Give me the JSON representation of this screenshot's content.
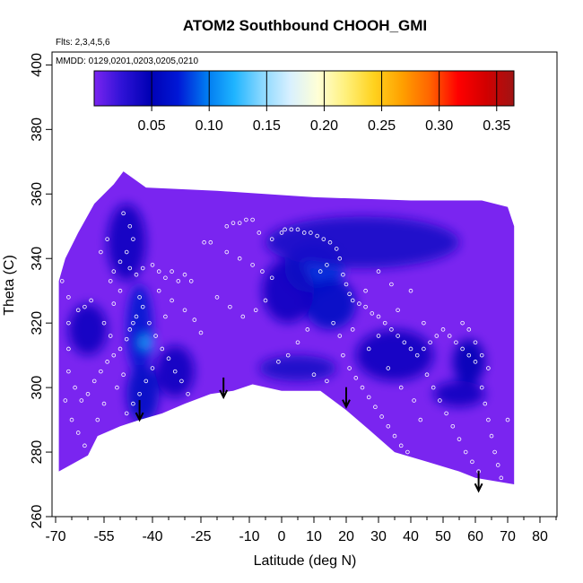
{
  "chart_data": {
    "type": "scatter",
    "title": "ATOM2 Southbound CHOOH_GMI",
    "flights_note": "Flts: 2,3,4,5,6",
    "dates_note": "MMDD: 0129,0201,0203,0205,0210",
    "xlabel": "Latitude (deg N)",
    "ylabel": "Theta (C)",
    "xlim": [
      -70,
      85
    ],
    "ylim": [
      260,
      404
    ],
    "x_ticks": [
      -70,
      -55,
      -40,
      -25,
      -10,
      0,
      10,
      20,
      30,
      40,
      50,
      60,
      70,
      80
    ],
    "x_tick_labels": [
      "-70",
      "-55",
      "-40",
      "-25",
      "-10",
      "0",
      "10",
      "20",
      "30",
      "40",
      "50",
      "60",
      "70",
      "80"
    ],
    "x_minor_ticks": [
      -65,
      -60,
      -50,
      -45,
      -35,
      -30,
      -20,
      -15,
      -5,
      5,
      15,
      25,
      35,
      45,
      55,
      65,
      75,
      85
    ],
    "y_ticks": [
      260,
      280,
      300,
      320,
      340,
      360,
      380,
      400
    ],
    "y_tick_labels": [
      "260",
      "280",
      "300",
      "320",
      "340",
      "360",
      "380",
      "400"
    ],
    "colorbar": {
      "min": 0.0,
      "max": 0.365,
      "ticks": [
        0.05,
        0.1,
        0.15,
        0.2,
        0.25,
        0.3,
        0.35
      ],
      "tick_labels": [
        "0.05",
        "0.10",
        "0.15",
        "0.20",
        "0.25",
        "0.30",
        "0.35"
      ],
      "colors": [
        "#7a25f0",
        "#2e12d6",
        "#0000b4",
        "#0018d6",
        "#0078f0",
        "#1eb4ff",
        "#8ad8ff",
        "#d8f0ff",
        "#ffffd6",
        "#fff07a",
        "#ffd21e",
        "#ffa000",
        "#ff6400",
        "#ff0000",
        "#d20000",
        "#a01414"
      ]
    },
    "background_color": "#7a25f0",
    "domain_outline": [
      {
        "lat": -69,
        "theta": 274
      },
      {
        "lat": -60,
        "theta": 279
      },
      {
        "lat": -57,
        "theta": 285
      },
      {
        "lat": -50,
        "theta": 288
      },
      {
        "lat": -44,
        "theta": 290
      },
      {
        "lat": -37,
        "theta": 292
      },
      {
        "lat": -30,
        "theta": 295
      },
      {
        "lat": -22,
        "theta": 298
      },
      {
        "lat": -15,
        "theta": 299
      },
      {
        "lat": -9,
        "theta": 301
      },
      {
        "lat": 0,
        "theta": 299
      },
      {
        "lat": 12,
        "theta": 299
      },
      {
        "lat": 20,
        "theta": 293
      },
      {
        "lat": 27,
        "theta": 287
      },
      {
        "lat": 35,
        "theta": 280
      },
      {
        "lat": 45,
        "theta": 277
      },
      {
        "lat": 55,
        "theta": 274
      },
      {
        "lat": 60,
        "theta": 272
      },
      {
        "lat": 72,
        "theta": 270
      },
      {
        "lat": 72,
        "theta": 350
      },
      {
        "lat": 70,
        "theta": 356
      },
      {
        "lat": 62,
        "theta": 358
      },
      {
        "lat": 40,
        "theta": 358
      },
      {
        "lat": 10,
        "theta": 359
      },
      {
        "lat": -20,
        "theta": 361
      },
      {
        "lat": -42,
        "theta": 362
      },
      {
        "lat": -49,
        "theta": 367
      },
      {
        "lat": -52,
        "theta": 363
      },
      {
        "lat": -58,
        "theta": 357
      },
      {
        "lat": -63,
        "theta": 348
      },
      {
        "lat": -67,
        "theta": 340
      },
      {
        "lat": -69,
        "theta": 333
      }
    ],
    "field_blobs": [
      {
        "lat": -48,
        "theta": 345,
        "rx": 6,
        "ry": 12,
        "value": 0.04
      },
      {
        "lat": -44,
        "theta": 318,
        "rx": 4,
        "ry": 14,
        "value": 0.07
      },
      {
        "lat": -42,
        "theta": 314,
        "rx": 2,
        "ry": 2,
        "value": 0.12
      },
      {
        "lat": -43,
        "theta": 298,
        "rx": 5,
        "ry": 9,
        "value": 0.06
      },
      {
        "lat": -60,
        "theta": 318,
        "rx": 6,
        "ry": 8,
        "value": 0.04
      },
      {
        "lat": -33,
        "theta": 305,
        "rx": 6,
        "ry": 8,
        "value": 0.04
      },
      {
        "lat": 10,
        "theta": 337,
        "rx": 9,
        "ry": 8,
        "value": 0.08
      },
      {
        "lat": 15,
        "theta": 326,
        "rx": 8,
        "ry": 8,
        "value": 0.06
      },
      {
        "lat": 2,
        "theta": 330,
        "rx": 8,
        "ry": 10,
        "value": 0.04
      },
      {
        "lat": 25,
        "theta": 345,
        "rx": 30,
        "ry": 8,
        "value": 0.035
      },
      {
        "lat": 35,
        "theta": 310,
        "rx": 12,
        "ry": 8,
        "value": 0.04
      },
      {
        "lat": 58,
        "theta": 308,
        "rx": 5,
        "ry": 7,
        "value": 0.05
      },
      {
        "lat": 55,
        "theta": 298,
        "rx": 8,
        "ry": 4,
        "value": 0.04
      },
      {
        "lat": 5,
        "theta": 306,
        "rx": 12,
        "ry": 4,
        "value": 0.035
      }
    ],
    "points": [
      {
        "lat": -47,
        "theta": 337
      },
      {
        "lat": -45,
        "theta": 335
      },
      {
        "lat": -43,
        "theta": 337
      },
      {
        "lat": -40,
        "theta": 338
      },
      {
        "lat": -38,
        "theta": 336
      },
      {
        "lat": -36,
        "theta": 334
      },
      {
        "lat": -34,
        "theta": 336
      },
      {
        "lat": -32,
        "theta": 333
      },
      {
        "lat": -30,
        "theta": 335
      },
      {
        "lat": -28,
        "theta": 333
      },
      {
        "lat": -44,
        "theta": 328
      },
      {
        "lat": -43,
        "theta": 325
      },
      {
        "lat": -45,
        "theta": 322
      },
      {
        "lat": -46,
        "theta": 320
      },
      {
        "lat": -47,
        "theta": 318
      },
      {
        "lat": -48,
        "theta": 315
      },
      {
        "lat": -50,
        "theta": 312
      },
      {
        "lat": -52,
        "theta": 310
      },
      {
        "lat": -54,
        "theta": 308
      },
      {
        "lat": -56,
        "theta": 305
      },
      {
        "lat": -58,
        "theta": 302
      },
      {
        "lat": -60,
        "theta": 298
      },
      {
        "lat": -62,
        "theta": 296
      },
      {
        "lat": -64,
        "theta": 300
      },
      {
        "lat": -66,
        "theta": 305
      },
      {
        "lat": -66,
        "theta": 312
      },
      {
        "lat": -66,
        "theta": 320
      },
      {
        "lat": -66,
        "theta": 328
      },
      {
        "lat": -68,
        "theta": 333
      },
      {
        "lat": -63,
        "theta": 324
      },
      {
        "lat": -61,
        "theta": 325
      },
      {
        "lat": -59,
        "theta": 327
      },
      {
        "lat": -49,
        "theta": 354
      },
      {
        "lat": -47,
        "theta": 350
      },
      {
        "lat": -46,
        "theta": 346
      },
      {
        "lat": -48,
        "theta": 342
      },
      {
        "lat": -50,
        "theta": 339
      },
      {
        "lat": -52,
        "theta": 336
      },
      {
        "lat": -53,
        "theta": 333
      },
      {
        "lat": -55,
        "theta": 320
      },
      {
        "lat": -53,
        "theta": 316
      },
      {
        "lat": -41,
        "theta": 320
      },
      {
        "lat": -39,
        "theta": 316
      },
      {
        "lat": -37,
        "theta": 312
      },
      {
        "lat": -35,
        "theta": 309
      },
      {
        "lat": -33,
        "theta": 305
      },
      {
        "lat": -31,
        "theta": 302
      },
      {
        "lat": -29,
        "theta": 298
      },
      {
        "lat": -40,
        "theta": 306
      },
      {
        "lat": -42,
        "theta": 302
      },
      {
        "lat": -44,
        "theta": 298
      },
      {
        "lat": -46,
        "theta": 295
      },
      {
        "lat": -48,
        "theta": 292
      },
      {
        "lat": -36,
        "theta": 322
      },
      {
        "lat": -34,
        "theta": 327
      },
      {
        "lat": -38,
        "theta": 330
      },
      {
        "lat": -30,
        "theta": 324
      },
      {
        "lat": -27,
        "theta": 321
      },
      {
        "lat": -25,
        "theta": 317
      },
      {
        "lat": -24,
        "theta": 345
      },
      {
        "lat": -22,
        "theta": 345
      },
      {
        "lat": -17,
        "theta": 350
      },
      {
        "lat": -15,
        "theta": 351
      },
      {
        "lat": -13,
        "theta": 351
      },
      {
        "lat": -11,
        "theta": 352
      },
      {
        "lat": -9,
        "theta": 352
      },
      {
        "lat": -17,
        "theta": 342
      },
      {
        "lat": -13,
        "theta": 340
      },
      {
        "lat": -9,
        "theta": 338
      },
      {
        "lat": -6,
        "theta": 336
      },
      {
        "lat": -3,
        "theta": 334
      },
      {
        "lat": -20,
        "theta": 328
      },
      {
        "lat": -16,
        "theta": 325
      },
      {
        "lat": -12,
        "theta": 322
      },
      {
        "lat": -8,
        "theta": 324
      },
      {
        "lat": -5,
        "theta": 327
      },
      {
        "lat": -7,
        "theta": 348
      },
      {
        "lat": -3,
        "theta": 346
      },
      {
        "lat": 0,
        "theta": 348
      },
      {
        "lat": 1,
        "theta": 349
      },
      {
        "lat": 3,
        "theta": 349
      },
      {
        "lat": 5,
        "theta": 349
      },
      {
        "lat": 7,
        "theta": 348
      },
      {
        "lat": 9,
        "theta": 348
      },
      {
        "lat": 11,
        "theta": 347
      },
      {
        "lat": 13,
        "theta": 346
      },
      {
        "lat": 15,
        "theta": 345
      },
      {
        "lat": 17,
        "theta": 343
      },
      {
        "lat": 18,
        "theta": 340
      },
      {
        "lat": 14,
        "theta": 338
      },
      {
        "lat": 12,
        "theta": 336
      },
      {
        "lat": 19,
        "theta": 335
      },
      {
        "lat": 20,
        "theta": 332
      },
      {
        "lat": 21,
        "theta": 329
      },
      {
        "lat": 22,
        "theta": 327
      },
      {
        "lat": 24,
        "theta": 326
      },
      {
        "lat": 26,
        "theta": 325
      },
      {
        "lat": 28,
        "theta": 323
      },
      {
        "lat": 30,
        "theta": 322
      },
      {
        "lat": 32,
        "theta": 320
      },
      {
        "lat": 34,
        "theta": 318
      },
      {
        "lat": 36,
        "theta": 316
      },
      {
        "lat": 38,
        "theta": 314
      },
      {
        "lat": 40,
        "theta": 312
      },
      {
        "lat": 42,
        "theta": 310
      },
      {
        "lat": 44,
        "theta": 312
      },
      {
        "lat": 46,
        "theta": 314
      },
      {
        "lat": 48,
        "theta": 316
      },
      {
        "lat": 50,
        "theta": 318
      },
      {
        "lat": 52,
        "theta": 316
      },
      {
        "lat": 54,
        "theta": 314
      },
      {
        "lat": 56,
        "theta": 312
      },
      {
        "lat": 58,
        "theta": 310
      },
      {
        "lat": 60,
        "theta": 308
      },
      {
        "lat": 19,
        "theta": 310
      },
      {
        "lat": 21,
        "theta": 306
      },
      {
        "lat": 23,
        "theta": 303
      },
      {
        "lat": 25,
        "theta": 300
      },
      {
        "lat": 27,
        "theta": 297
      },
      {
        "lat": 29,
        "theta": 294
      },
      {
        "lat": 31,
        "theta": 291
      },
      {
        "lat": 33,
        "theta": 288
      },
      {
        "lat": 35,
        "theta": 285
      },
      {
        "lat": 37,
        "theta": 282
      },
      {
        "lat": 39,
        "theta": 280
      },
      {
        "lat": 8,
        "theta": 318
      },
      {
        "lat": 5,
        "theta": 314
      },
      {
        "lat": 2,
        "theta": 310
      },
      {
        "lat": -1,
        "theta": 308
      },
      {
        "lat": 10,
        "theta": 304
      },
      {
        "lat": 14,
        "theta": 302
      },
      {
        "lat": 45,
        "theta": 304
      },
      {
        "lat": 47,
        "theta": 300
      },
      {
        "lat": 49,
        "theta": 296
      },
      {
        "lat": 51,
        "theta": 292
      },
      {
        "lat": 53,
        "theta": 288
      },
      {
        "lat": 55,
        "theta": 284
      },
      {
        "lat": 57,
        "theta": 280
      },
      {
        "lat": 59,
        "theta": 277
      },
      {
        "lat": 61,
        "theta": 274
      },
      {
        "lat": 62,
        "theta": 300
      },
      {
        "lat": 63,
        "theta": 295
      },
      {
        "lat": 64,
        "theta": 290
      },
      {
        "lat": 65,
        "theta": 285
      },
      {
        "lat": 66,
        "theta": 280
      },
      {
        "lat": 67,
        "theta": 276
      },
      {
        "lat": 68,
        "theta": 272
      },
      {
        "lat": 58,
        "theta": 318
      },
      {
        "lat": 60,
        "theta": 314
      },
      {
        "lat": 56,
        "theta": 320
      },
      {
        "lat": 62,
        "theta": 310
      },
      {
        "lat": 64,
        "theta": 306
      },
      {
        "lat": 70,
        "theta": 290
      },
      {
        "lat": 40,
        "theta": 330
      },
      {
        "lat": 36,
        "theta": 324
      },
      {
        "lat": 44,
        "theta": 320
      },
      {
        "lat": 30,
        "theta": 316
      },
      {
        "lat": 27,
        "theta": 312
      },
      {
        "lat": 33,
        "theta": 306
      },
      {
        "lat": 37,
        "theta": 300
      },
      {
        "lat": 41,
        "theta": 296
      },
      {
        "lat": 43,
        "theta": 290
      },
      {
        "lat": -65,
        "theta": 290
      },
      {
        "lat": -63,
        "theta": 286
      },
      {
        "lat": -61,
        "theta": 282
      },
      {
        "lat": -67,
        "theta": 296
      },
      {
        "lat": -57,
        "theta": 290
      },
      {
        "lat": -55,
        "theta": 295
      },
      {
        "lat": -51,
        "theta": 300
      },
      {
        "lat": -49,
        "theta": 304
      },
      {
        "lat": -52,
        "theta": 326
      },
      {
        "lat": -50,
        "theta": 330
      },
      {
        "lat": -54,
        "theta": 346
      },
      {
        "lat": -56,
        "theta": 342
      },
      {
        "lat": 16,
        "theta": 320
      },
      {
        "lat": 18,
        "theta": 316
      },
      {
        "lat": 22,
        "theta": 318
      },
      {
        "lat": 26,
        "theta": 330
      },
      {
        "lat": 30,
        "theta": 336
      },
      {
        "lat": 34,
        "theta": 332
      }
    ],
    "profile_markers": [
      {
        "lat": -44,
        "theta": 290
      },
      {
        "lat": -18,
        "theta": 297
      },
      {
        "lat": 20,
        "theta": 294
      },
      {
        "lat": 61,
        "theta": 268
      }
    ]
  }
}
